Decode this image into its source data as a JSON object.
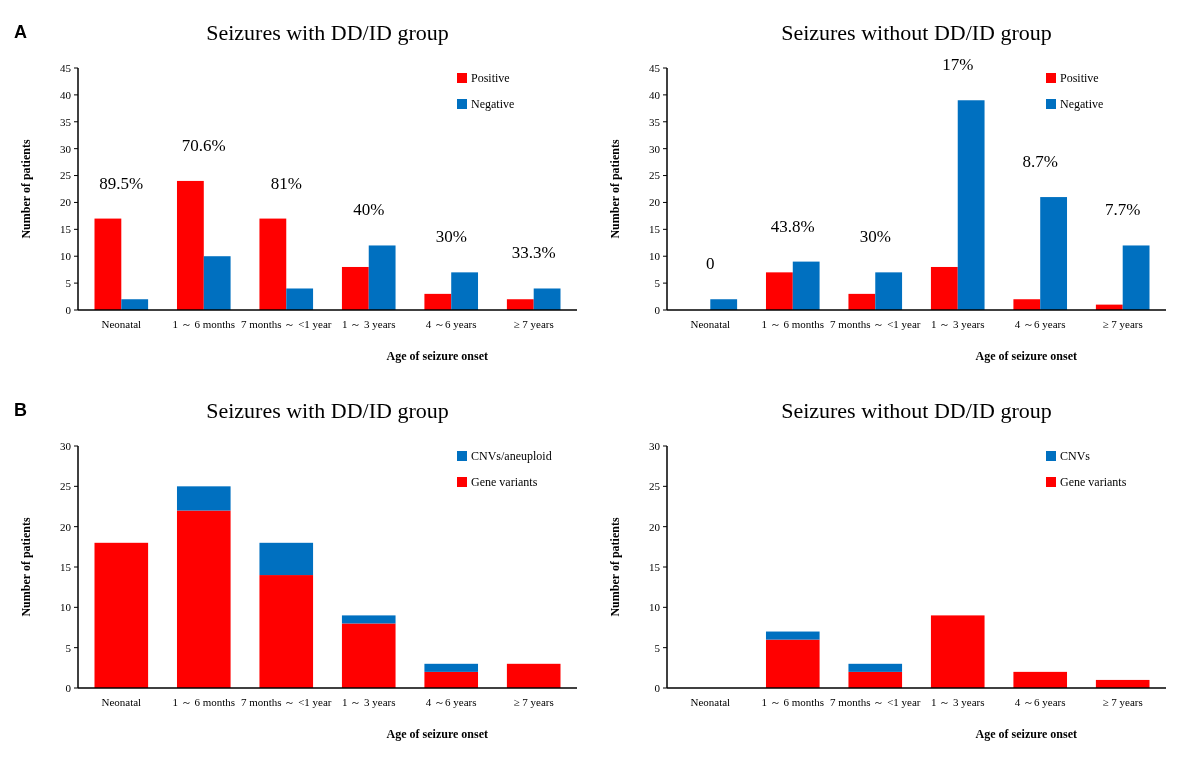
{
  "chart_data": [
    {
      "type": "bar",
      "title": "Seizures with DD/ID group",
      "xlabel": "Age of seizure onset",
      "ylabel": "Number of patients",
      "categories": [
        "Neonatal",
        "1 ～ 6 months",
        "7 months ～ <1 year",
        "1 ～ 3 years",
        "4 ～6 years",
        "≥ 7 years"
      ],
      "series": [
        {
          "name": "Positive",
          "color": "#ff0000",
          "values": [
            17,
            24,
            17,
            8,
            3,
            2
          ]
        },
        {
          "name": "Negative",
          "color": "#0070c0",
          "values": [
            2,
            10,
            4,
            12,
            7,
            4
          ]
        }
      ],
      "ylim": [
        0,
        45
      ],
      "yticks": [
        0,
        5,
        10,
        15,
        20,
        25,
        30,
        35,
        40,
        45
      ],
      "grid": false,
      "legend": "top right",
      "annotations": [
        "89.5%",
        "70.6%",
        "81%",
        "40%",
        "30%",
        "33.3%",
        "A"
      ]
    },
    {
      "type": "bar",
      "title": "Seizures without DD/ID group",
      "xlabel": "Age of seizure onset",
      "ylabel": "Number of patients",
      "categories": [
        "Neonatal",
        "1 ～ 6 months",
        "7 months ～ <1 year",
        "1 ～ 3 years",
        "4 ～6 years",
        "≥ 7 years"
      ],
      "series": [
        {
          "name": "Positive",
          "color": "#ff0000",
          "values": [
            0,
            7,
            3,
            8,
            2,
            1
          ]
        },
        {
          "name": "Negative",
          "color": "#0070c0",
          "values": [
            2,
            9,
            7,
            39,
            21,
            12
          ]
        }
      ],
      "ylim": [
        0,
        45
      ],
      "yticks": [
        0,
        5,
        10,
        15,
        20,
        25,
        30,
        35,
        40,
        45
      ],
      "grid": false,
      "legend": "top right",
      "annotations": [
        "0",
        "43.8%",
        "30%",
        "17%",
        "8.7%",
        "7.7%"
      ]
    },
    {
      "type": "bar",
      "stacked": true,
      "title": "Seizures with DD/ID group",
      "xlabel": "Age of seizure onset",
      "ylabel": "Number of patients",
      "categories": [
        "Neonatal",
        "1 ～ 6 months",
        "7 months ～ <1 year",
        "1 ～ 3 years",
        "4 ～6 years",
        "≥ 7 years"
      ],
      "series": [
        {
          "name": "Gene variants",
          "color": "#ff0000",
          "values": [
            18,
            22,
            14,
            8,
            2,
            3
          ]
        },
        {
          "name": "CNVs/aneuploid",
          "color": "#0070c0",
          "values": [
            0,
            3,
            4,
            1,
            1,
            0
          ]
        }
      ],
      "ylim": [
        0,
        30
      ],
      "yticks": [
        0,
        5,
        10,
        15,
        20,
        25,
        30
      ],
      "grid": false,
      "legend": "top right",
      "annotations": [
        "B"
      ]
    },
    {
      "type": "bar",
      "stacked": true,
      "title": "Seizures without DD/ID group",
      "xlabel": "Age of seizure onset",
      "ylabel": "Number of patients",
      "categories": [
        "Neonatal",
        "1 ～ 6 months",
        "7 months ～ <1 year",
        "1 ～ 3 years",
        "4 ～6 years",
        "≥ 7 years"
      ],
      "series": [
        {
          "name": "Gene variants",
          "color": "#ff0000",
          "values": [
            0,
            6,
            2,
            9,
            2,
            1
          ]
        },
        {
          "name": "CNVs",
          "color": "#0070c0",
          "values": [
            0,
            1,
            1,
            0,
            0,
            0
          ]
        }
      ],
      "ylim": [
        0,
        30
      ],
      "yticks": [
        0,
        5,
        10,
        15,
        20,
        25,
        30
      ],
      "grid": false,
      "legend": "top right"
    }
  ]
}
